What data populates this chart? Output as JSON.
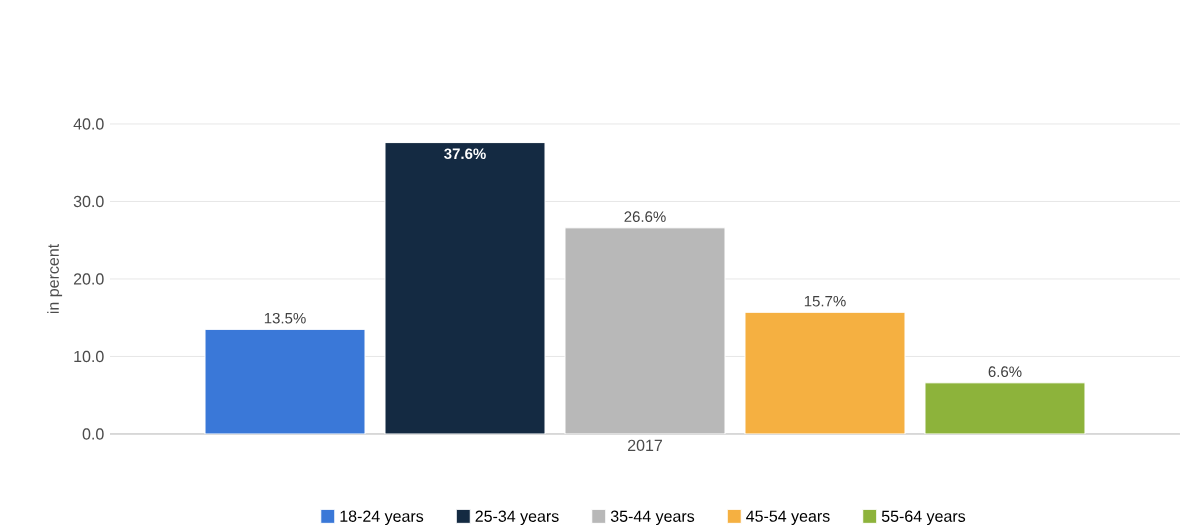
{
  "chart_data": {
    "type": "bar",
    "categories": [
      "2017"
    ],
    "ylabel": "in percent",
    "ylim": [
      0,
      40
    ],
    "yticks": [
      {
        "value": 0,
        "label": "0.0"
      },
      {
        "value": 10,
        "label": "10.0"
      },
      {
        "value": 20,
        "label": "20.0"
      },
      {
        "value": 30,
        "label": "30.0"
      },
      {
        "value": 40,
        "label": "40.0"
      }
    ],
    "grid": "y",
    "legend": "bottom",
    "series": [
      {
        "name": "18-24 years",
        "color": "#3a78d8",
        "values": [
          13.5
        ],
        "value_labels": [
          "13.5%"
        ]
      },
      {
        "name": "25-34 years",
        "color": "#142a42",
        "values": [
          37.6
        ],
        "value_labels": [
          "37.6%"
        ]
      },
      {
        "name": "35-44 years",
        "color": "#b8b8b8",
        "values": [
          26.6
        ],
        "value_labels": [
          "26.6%"
        ]
      },
      {
        "name": "45-54 years",
        "color": "#f5b041",
        "values": [
          15.7
        ],
        "value_labels": [
          "15.7%"
        ]
      },
      {
        "name": "55-64 years",
        "color": "#8db33b",
        "values": [
          6.6
        ],
        "value_labels": [
          "6.6%"
        ]
      }
    ]
  }
}
